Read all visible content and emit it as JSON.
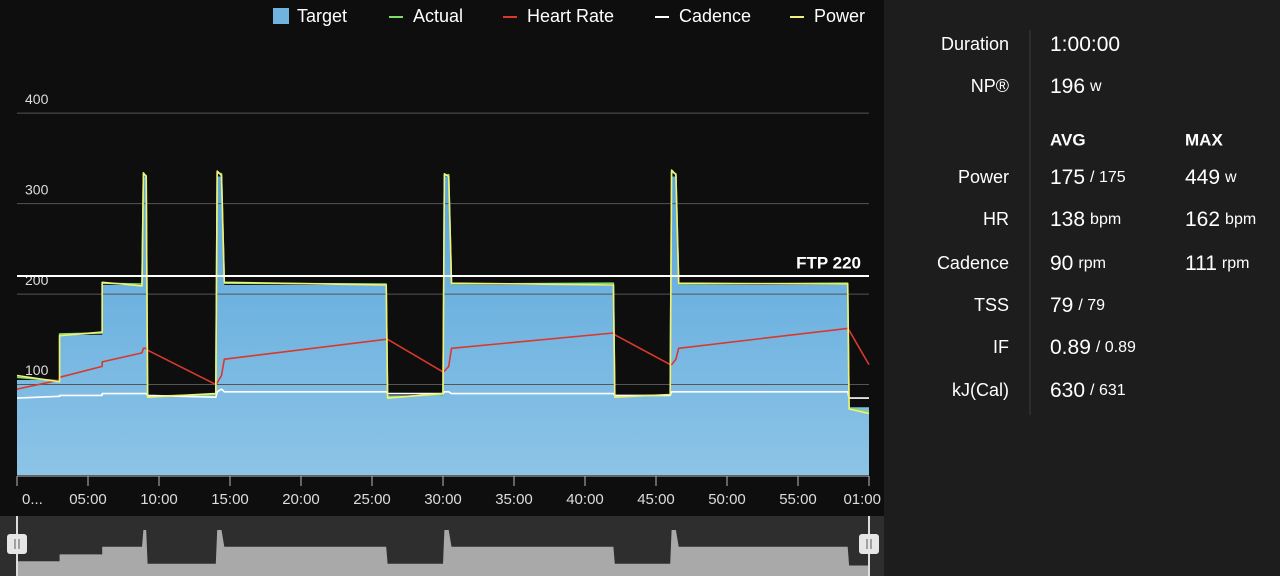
{
  "chart_data": {
    "type": "line",
    "x": [
      0,
      3,
      3,
      6,
      6,
      8.8,
      8.9,
      9.1,
      9.2,
      14,
      14.1,
      14.4,
      14.6,
      26,
      26.1,
      30,
      30.1,
      30.4,
      30.6,
      42,
      42.1,
      46,
      46.1,
      46.4,
      46.6,
      58.5,
      58.6,
      60
    ],
    "series": [
      {
        "name": "Target",
        "color": "#6fb3e0",
        "style": "area",
        "values": [
          105,
          105,
          155,
          155,
          210,
          210,
          330,
          330,
          88,
          88,
          330,
          330,
          210,
          210,
          88,
          88,
          330,
          330,
          210,
          210,
          88,
          88,
          330,
          330,
          210,
          210,
          75,
          75
        ]
      },
      {
        "name": "Actual",
        "color": "#7ddc6a",
        "values": [
          108,
          104,
          156,
          157,
          212,
          211,
          332,
          331,
          87,
          89,
          334,
          333,
          212,
          211,
          86,
          89,
          331,
          332,
          211,
          212,
          87,
          88,
          335,
          333,
          211,
          212,
          74,
          70
        ]
      },
      {
        "name": "Heart Rate",
        "color": "#d8392b",
        "values": [
          95,
          105,
          108,
          120,
          125,
          135,
          140,
          140,
          138,
          100,
          102,
          110,
          128,
          150,
          150,
          114,
          115,
          120,
          140,
          157,
          155,
          122,
          122,
          128,
          140,
          162,
          160,
          122
        ]
      },
      {
        "name": "Cadence",
        "color": "#ffffff",
        "values": [
          85,
          87,
          88,
          88,
          90,
          90,
          90,
          90,
          88,
          86,
          92,
          95,
          92,
          92,
          90,
          90,
          92,
          92,
          90,
          90,
          88,
          88,
          92,
          92,
          92,
          92,
          85,
          85
        ]
      },
      {
        "name": "Power",
        "color": "#f0f07a",
        "values": [
          110,
          103,
          154,
          158,
          213,
          209,
          334,
          330,
          86,
          90,
          336,
          331,
          213,
          210,
          85,
          90,
          333,
          330,
          212,
          210,
          86,
          89,
          337,
          332,
          212,
          211,
          73,
          68
        ]
      }
    ],
    "ftp": {
      "label": "FTP 220",
      "value": 220
    },
    "xlim": [
      0,
      60
    ],
    "ylim": [
      0,
      430
    ],
    "xticks": [
      {
        "value": 0,
        "label": "0..."
      },
      {
        "value": 5,
        "label": "05:00"
      },
      {
        "value": 10,
        "label": "10:00"
      },
      {
        "value": 15,
        "label": "15:00"
      },
      {
        "value": 20,
        "label": "20:00"
      },
      {
        "value": 25,
        "label": "25:00"
      },
      {
        "value": 30,
        "label": "30:00"
      },
      {
        "value": 35,
        "label": "35:00"
      },
      {
        "value": 40,
        "label": "40:00"
      },
      {
        "value": 45,
        "label": "45:00"
      },
      {
        "value": 50,
        "label": "50:00"
      },
      {
        "value": 55,
        "label": "55:00"
      },
      {
        "value": 60,
        "label": "01:00"
      }
    ],
    "yticks": [
      100,
      200,
      300,
      400
    ],
    "grid": true
  },
  "stats": {
    "summary": [
      {
        "label": "Duration",
        "value": [
          "1:00:00"
        ]
      },
      {
        "label": "NP®",
        "value": [
          "196",
          "w"
        ]
      }
    ],
    "headers": [
      "AVG",
      "MAX"
    ],
    "rows": [
      {
        "label": "Power",
        "avg": [
          "175",
          "/ 175"
        ],
        "max": [
          "449",
          "w"
        ]
      },
      {
        "label": "HR",
        "avg": [
          "138",
          "bpm"
        ],
        "max": [
          "162",
          "bpm"
        ]
      },
      {
        "label": "Cadence",
        "avg": [
          "90",
          "rpm"
        ],
        "max": [
          "111",
          "rpm"
        ]
      },
      {
        "label": "TSS",
        "avg": [
          "79",
          "/ 79"
        ]
      },
      {
        "label": "IF",
        "avg": [
          "0.89",
          "/ 0.89"
        ]
      },
      {
        "label": "kJ(Cal)",
        "avg": [
          "630",
          "/ 631"
        ]
      }
    ]
  }
}
